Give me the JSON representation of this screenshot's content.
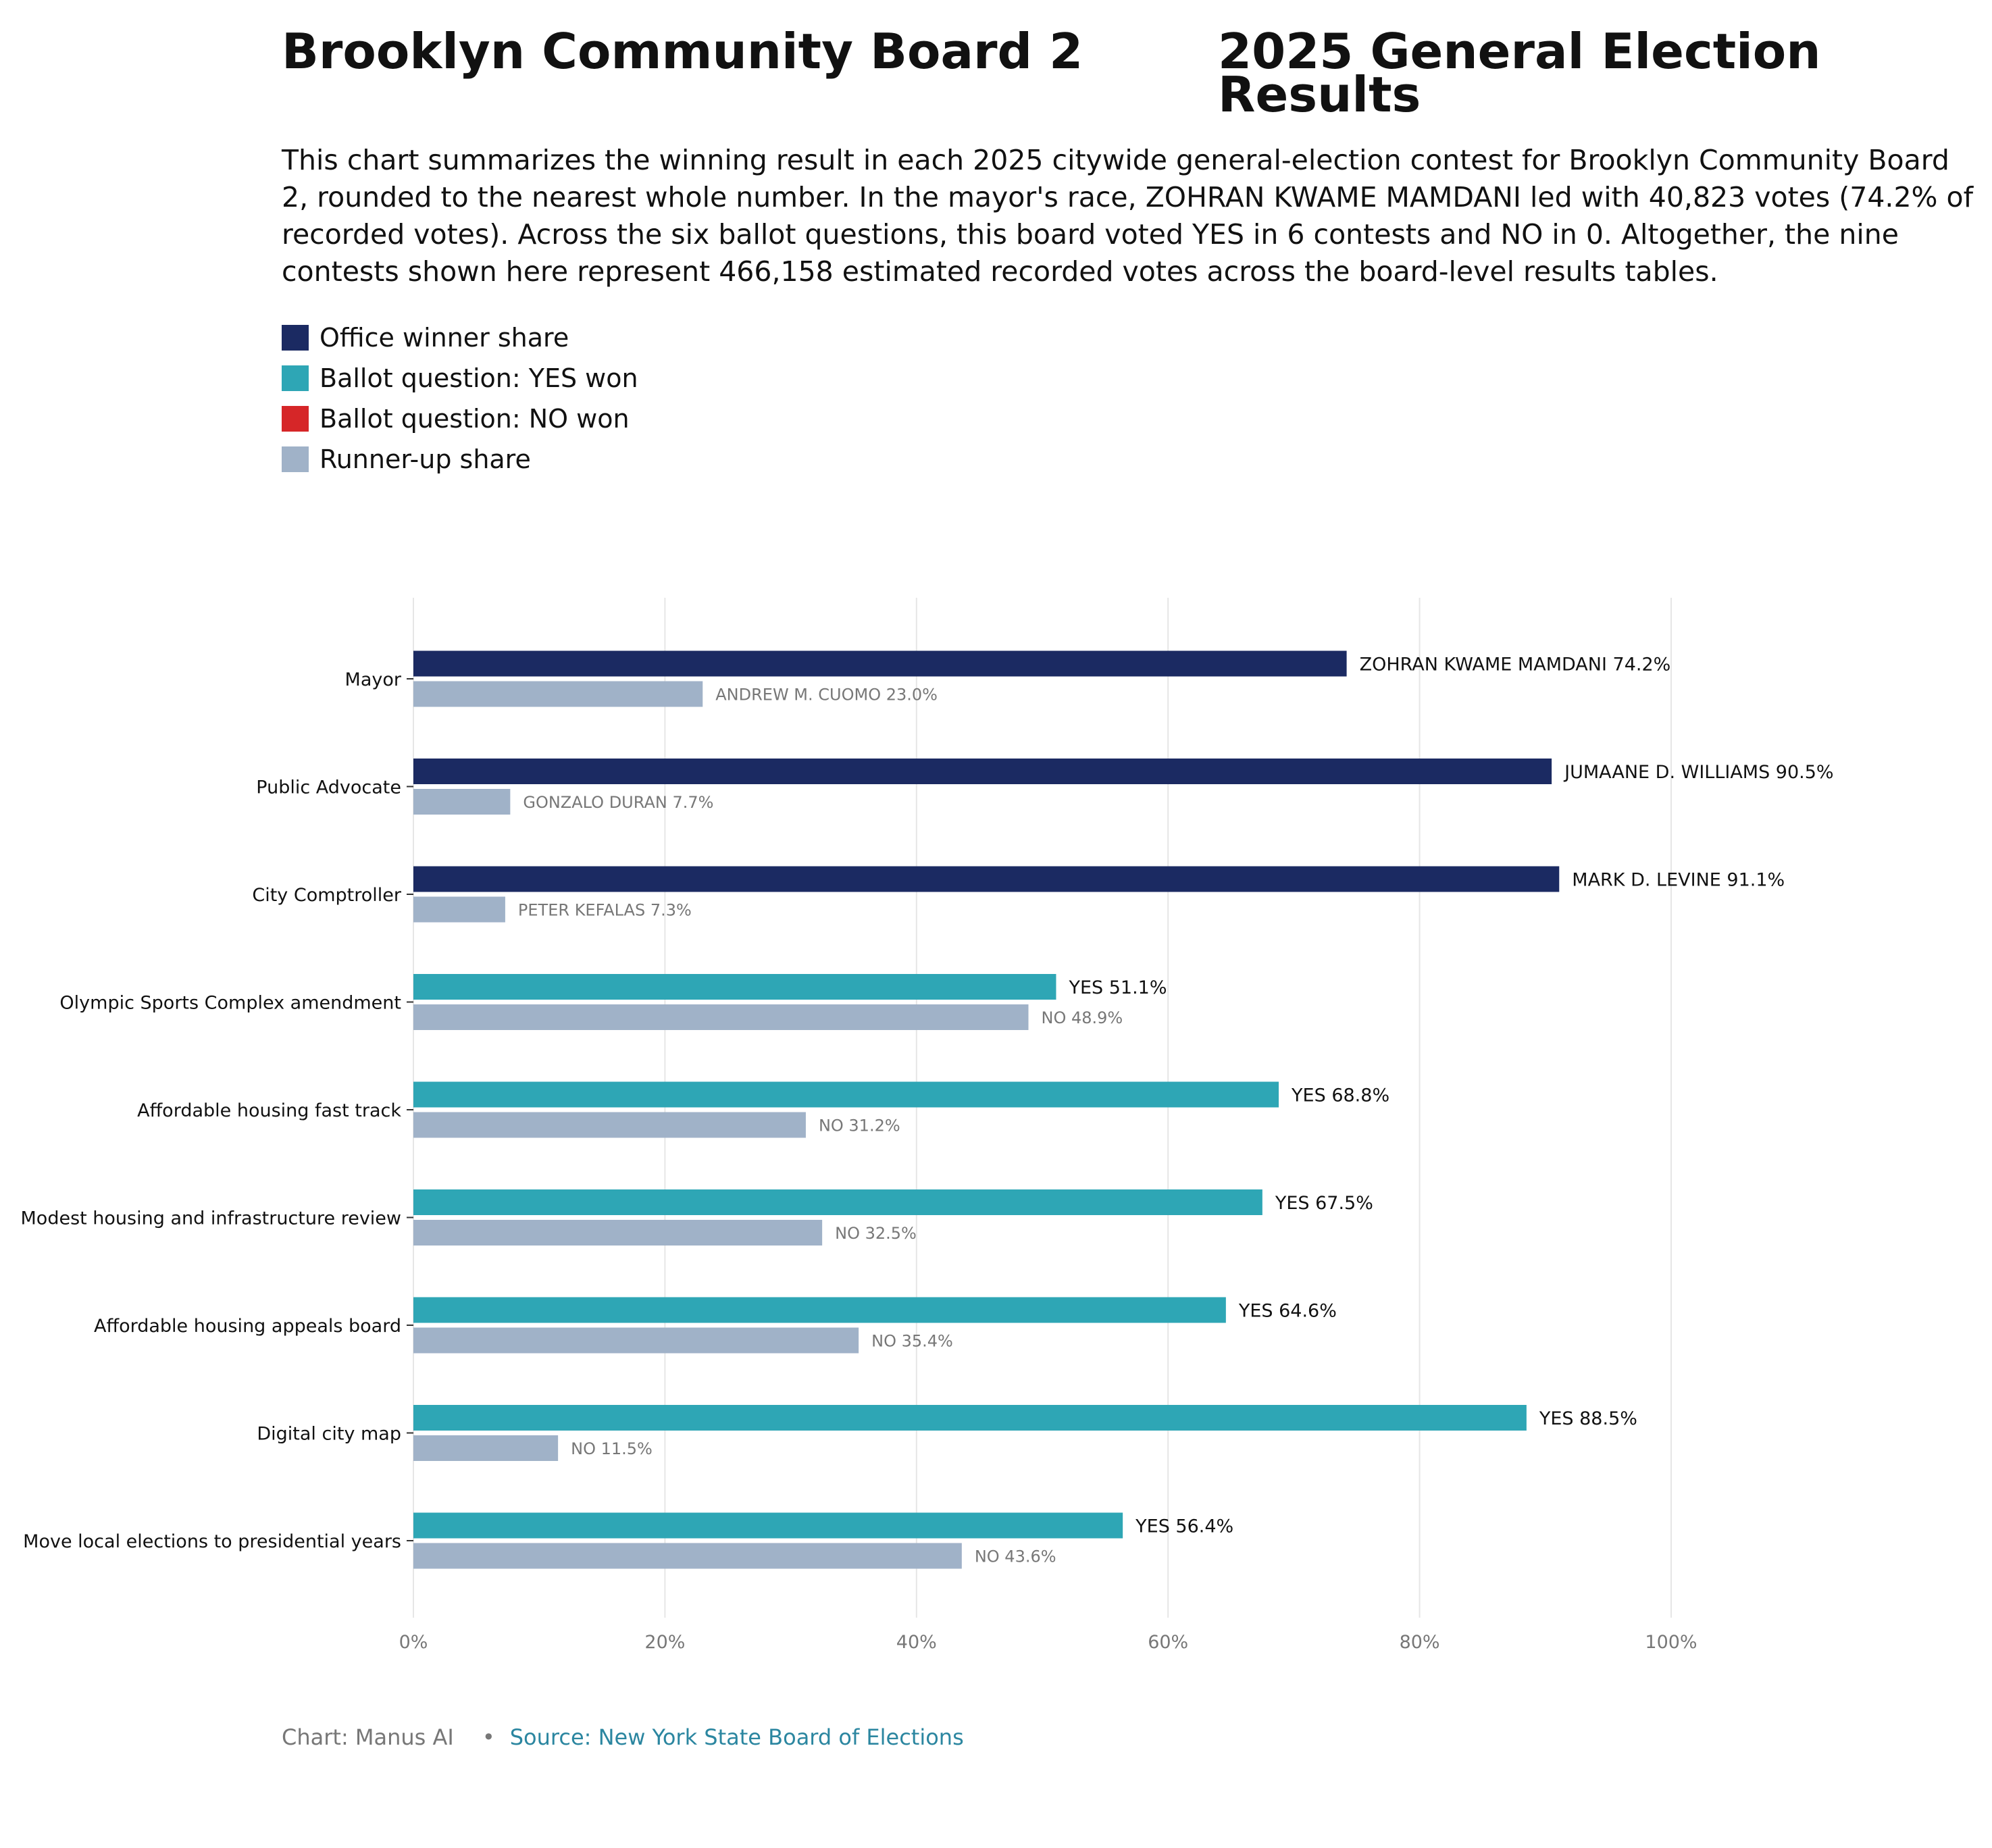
{
  "header": {
    "title_left": "Brooklyn Community Board 2",
    "title_right": "2025 General Election Results",
    "summary": "This chart summarizes the winning result in each 2025 citywide general-election contest for Brooklyn Community Board 2, rounded to the nearest whole number. In the mayor's race, ZOHRAN KWAME MAMDANI led with 40,823 votes (74.2% of recorded votes). Across the six ballot questions, this board voted YES in 6 contests and NO in 0. Altogether, the nine contests shown here represent 466,158 estimated recorded votes across the board-level results tables."
  },
  "legend": [
    {
      "label": "Office winner share",
      "color": "#1b2a62"
    },
    {
      "label": "Ballot question: YES won",
      "color": "#2ea6b5"
    },
    {
      "label": "Ballot question: NO won",
      "color": "#d62628"
    },
    {
      "label": "Runner-up share",
      "color": "#a0b2c8"
    }
  ],
  "footer": {
    "credit": "Chart: Manus AI",
    "bullet": "•",
    "source": "Source: New York State Board of Elections"
  },
  "chart_data": {
    "type": "bar",
    "orientation": "horizontal",
    "x_ticks": [
      "0%",
      "20%",
      "40%",
      "60%",
      "80%",
      "100%"
    ],
    "xlim": [
      0,
      100
    ],
    "grid": true,
    "legend_position": "top-left",
    "colors": {
      "office_winner": "#1b2a62",
      "yes_won": "#2ea6b5",
      "no_won": "#d62628",
      "runner_up": "#a0b2c8"
    },
    "contests": [
      {
        "name": "Mayor",
        "kind": "office",
        "winner_label": "ZOHRAN KWAME MAMDANI 74.2%",
        "winner_value": 74.2,
        "runner_label": "ANDREW M. CUOMO 23.0%",
        "runner_value": 23.0
      },
      {
        "name": "Public Advocate",
        "kind": "office",
        "winner_label": "JUMAANE D. WILLIAMS 90.5%",
        "winner_value": 90.5,
        "runner_label": "GONZALO DURAN 7.7%",
        "runner_value": 7.7
      },
      {
        "name": "City Comptroller",
        "kind": "office",
        "winner_label": "MARK D. LEVINE 91.1%",
        "winner_value": 91.1,
        "runner_label": "PETER KEFALAS 7.3%",
        "runner_value": 7.3
      },
      {
        "name": "Olympic Sports Complex amendment",
        "kind": "yes",
        "winner_label": "YES 51.1%",
        "winner_value": 51.1,
        "runner_label": "NO 48.9%",
        "runner_value": 48.9
      },
      {
        "name": "Affordable housing fast track",
        "kind": "yes",
        "winner_label": "YES 68.8%",
        "winner_value": 68.8,
        "runner_label": "NO 31.2%",
        "runner_value": 31.2
      },
      {
        "name": "Modest housing and infrastructure review",
        "kind": "yes",
        "winner_label": "YES 67.5%",
        "winner_value": 67.5,
        "runner_label": "NO 32.5%",
        "runner_value": 32.5
      },
      {
        "name": "Affordable housing appeals board",
        "kind": "yes",
        "winner_label": "YES 64.6%",
        "winner_value": 64.6,
        "runner_label": "NO 35.4%",
        "runner_value": 35.4
      },
      {
        "name": "Digital city map",
        "kind": "yes",
        "winner_label": "YES 88.5%",
        "winner_value": 88.5,
        "runner_label": "NO 11.5%",
        "runner_value": 11.5
      },
      {
        "name": "Move local elections to presidential years",
        "kind": "yes",
        "winner_label": "YES 56.4%",
        "winner_value": 56.4,
        "runner_label": "NO 43.6%",
        "runner_value": 43.6
      }
    ]
  }
}
